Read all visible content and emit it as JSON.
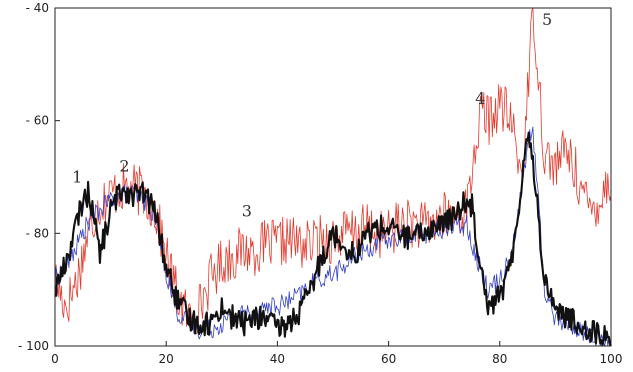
{
  "chart_data": {
    "type": "line",
    "xlim": [
      0,
      100
    ],
    "ylim": [
      -100,
      -40
    ],
    "x_ticks": [
      "0",
      "20",
      "40",
      "60",
      "80",
      "100"
    ],
    "y_ticks": [
      "- 40",
      "- 60",
      "- 80",
      "- 100"
    ],
    "x_tick_values": [
      0,
      20,
      40,
      60,
      80,
      100
    ],
    "y_tick_values": [
      -40,
      -60,
      -80,
      -100
    ],
    "grid": false,
    "annotations": [
      {
        "text": "1",
        "x": 4,
        "y": -71
      },
      {
        "text": "2",
        "x": 12.5,
        "y": -69
      },
      {
        "text": "3",
        "x": 34.5,
        "y": -77
      },
      {
        "text": "4",
        "x": 76.5,
        "y": -57
      },
      {
        "text": "5",
        "x": 88.5,
        "y": -43
      }
    ],
    "series": [
      {
        "color": "#e23b2e",
        "width": 0.8,
        "jitter": 4.5,
        "x": [
          0,
          2,
          4,
          6,
          8,
          10,
          12,
          14,
          16,
          18,
          20,
          22,
          24,
          26,
          28,
          30,
          32,
          34,
          36,
          38,
          40,
          42,
          44,
          46,
          48,
          50,
          52,
          54,
          56,
          58,
          60,
          62,
          64,
          66,
          68,
          70,
          72,
          74,
          76,
          77,
          78,
          80,
          82,
          84,
          85,
          86,
          87,
          88,
          90,
          92,
          94,
          96,
          98,
          100
        ],
        "y": [
          -88,
          -93,
          -88,
          -80,
          -75,
          -73,
          -72,
          -72,
          -73,
          -76,
          -84,
          -91,
          -95,
          -93,
          -88,
          -85,
          -84,
          -83,
          -83,
          -82,
          -82,
          -81,
          -82,
          -82,
          -81,
          -81,
          -80,
          -80,
          -79,
          -80,
          -80,
          -78,
          -78,
          -79,
          -78,
          -77,
          -77,
          -76,
          -62,
          -58,
          -60,
          -57,
          -60,
          -70,
          -55,
          -40,
          -52,
          -66,
          -68,
          -65,
          -70,
          -76,
          -74,
          -70
        ]
      },
      {
        "color": "#3540c8",
        "width": 0.8,
        "jitter": 1.8,
        "x": [
          0,
          2,
          4,
          6,
          8,
          10,
          12,
          14,
          16,
          18,
          20,
          22,
          24,
          26,
          28,
          30,
          32,
          34,
          36,
          38,
          40,
          42,
          44,
          46,
          48,
          50,
          52,
          54,
          56,
          58,
          60,
          62,
          64,
          66,
          68,
          70,
          72,
          74,
          76,
          78,
          80,
          82,
          84,
          85,
          86,
          87,
          88,
          90,
          92,
          94,
          96,
          98,
          100
        ],
        "y": [
          -88,
          -86,
          -82,
          -78,
          -76,
          -74,
          -73,
          -73,
          -74,
          -77,
          -87,
          -94,
          -96,
          -97,
          -97,
          -96,
          -95,
          -94,
          -94,
          -93,
          -93,
          -92,
          -91,
          -89,
          -88,
          -87,
          -86,
          -84,
          -83,
          -82,
          -81,
          -81,
          -80,
          -80,
          -80,
          -79,
          -79,
          -78,
          -85,
          -90,
          -88,
          -84,
          -72,
          -64,
          -62,
          -75,
          -90,
          -95,
          -96,
          -97,
          -98,
          -99,
          -100
        ]
      },
      {
        "color": "#111111",
        "width": 2.1,
        "jitter": 2.2,
        "x": [
          0,
          2,
          4,
          5,
          6,
          7,
          8,
          10,
          12,
          14,
          16,
          18,
          20,
          22,
          24,
          26,
          28,
          30,
          32,
          34,
          36,
          38,
          40,
          42,
          44,
          46,
          48,
          50,
          52,
          54,
          56,
          58,
          60,
          62,
          64,
          66,
          68,
          70,
          72,
          74,
          75,
          76,
          78,
          80,
          82,
          84,
          85,
          86,
          87,
          88,
          90,
          92,
          94,
          96,
          98,
          100
        ],
        "y": [
          -90,
          -85,
          -78,
          -74,
          -73,
          -76,
          -84,
          -76,
          -72,
          -73,
          -73,
          -76,
          -86,
          -92,
          -95,
          -96,
          -96,
          -93,
          -95,
          -96,
          -95,
          -95,
          -97,
          -96,
          -94,
          -90,
          -84,
          -80,
          -82,
          -84,
          -80,
          -79,
          -79,
          -80,
          -81,
          -80,
          -79,
          -78,
          -77,
          -74,
          -75,
          -82,
          -93,
          -91,
          -86,
          -70,
          -62,
          -67,
          -78,
          -88,
          -93,
          -95,
          -96,
          -97,
          -98,
          -99
        ]
      }
    ]
  }
}
